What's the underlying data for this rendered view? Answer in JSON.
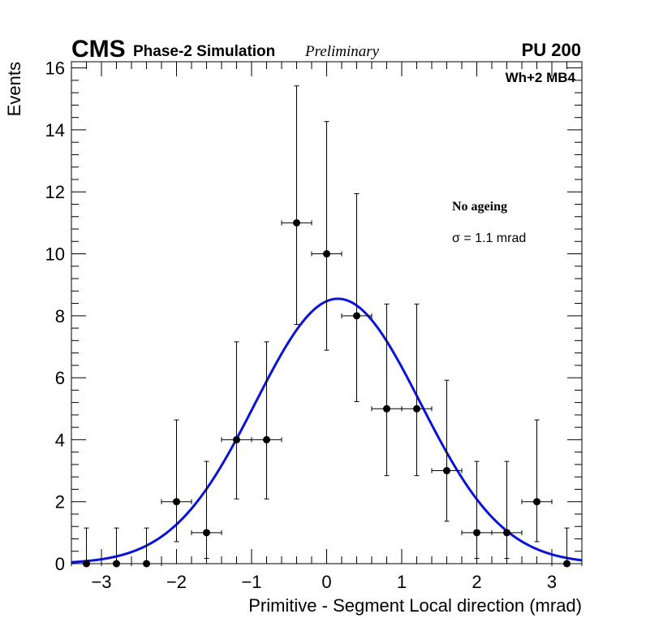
{
  "header": {
    "experiment": "CMS",
    "simulation": "Phase-2 Simulation",
    "status": "Preliminary",
    "pileup": "PU 200"
  },
  "chart_data": {
    "type": "scatter",
    "title": "",
    "xlabel": "Primitive - Segment Local direction (mrad)",
    "ylabel": "Events",
    "xlim": [
      -3.4,
      3.4
    ],
    "ylim": [
      0,
      16.2
    ],
    "x_ticks": [
      -3,
      -2,
      -1,
      0,
      1,
      2,
      3
    ],
    "x_tick_labels": [
      "−3",
      "−2",
      "−1",
      "0",
      "1",
      "2",
      "3"
    ],
    "y_ticks": [
      0,
      2,
      4,
      6,
      8,
      10,
      12,
      14,
      16
    ],
    "y_tick_labels": [
      "0",
      "2",
      "4",
      "6",
      "8",
      "10",
      "12",
      "14",
      "16"
    ],
    "grid": false,
    "bin_half_width": 0.2,
    "series": [
      {
        "name": "Data",
        "color": "#000000",
        "x": [
          -3.2,
          -2.8,
          -2.4,
          -2.0,
          -1.6,
          -1.2,
          -0.8,
          -0.4,
          0.0,
          0.4,
          0.8,
          1.2,
          1.6,
          2.0,
          2.4,
          2.8,
          3.2
        ],
        "y": [
          0,
          0,
          0,
          2,
          1,
          4,
          4,
          11,
          10,
          8,
          5,
          5,
          3,
          1,
          1,
          2,
          0
        ],
        "err_low": [
          0,
          0,
          0,
          1.29,
          0.83,
          1.91,
          1.91,
          3.28,
          3.11,
          2.77,
          2.16,
          2.16,
          1.63,
          0.83,
          0.83,
          1.29,
          0
        ],
        "err_high": [
          1.15,
          1.15,
          1.15,
          2.64,
          2.3,
          3.16,
          3.16,
          4.42,
          4.27,
          3.94,
          3.38,
          3.38,
          2.92,
          2.3,
          2.3,
          2.64,
          1.15
        ]
      },
      {
        "name": "Gaussian fit",
        "type": "line",
        "color": "#0a14d9",
        "amplitude": 8.55,
        "mean": 0.15,
        "sigma": 1.1
      }
    ],
    "annotations": {
      "category": "Wh+2 MB4",
      "condition": "No ageing",
      "resolution": "σ = 1.1 mrad"
    }
  }
}
